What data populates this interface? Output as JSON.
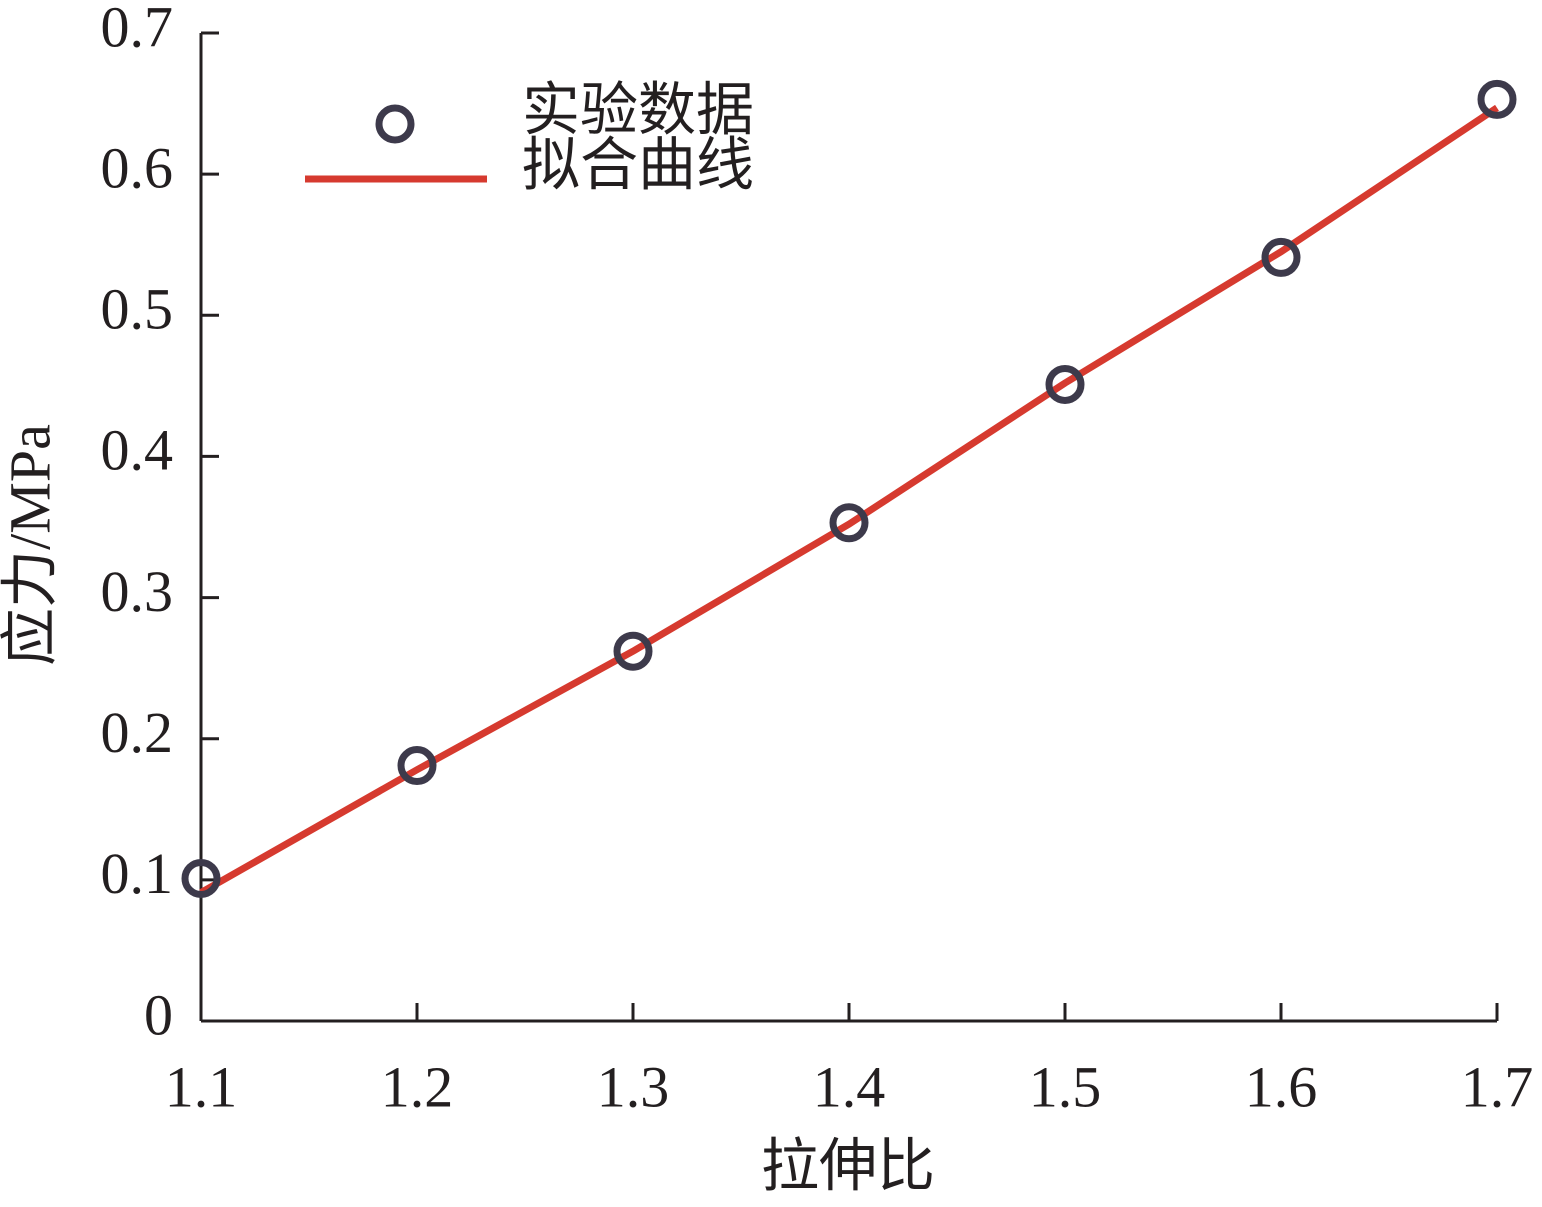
{
  "chart_data": {
    "type": "line",
    "xlabel": "拉伸比",
    "ylabel": "应力/MPa",
    "x": [
      1.1,
      1.2,
      1.3,
      1.4,
      1.5,
      1.6,
      1.7
    ],
    "series": [
      {
        "name": "实验数据",
        "type": "scatter",
        "color": "#3d3a4b",
        "values": [
          0.101,
          0.181,
          0.262,
          0.353,
          0.451,
          0.541,
          0.653
        ]
      },
      {
        "name": "拟合曲线",
        "type": "line",
        "color": "#d63a2f",
        "values": [
          0.091,
          0.178,
          0.262,
          0.352,
          0.452,
          0.545,
          0.647
        ]
      }
    ],
    "xlim": [
      1.1,
      1.7
    ],
    "xticks": [
      1.1,
      1.2,
      1.3,
      1.4,
      1.5,
      1.6,
      1.7
    ],
    "ylim": [
      0,
      0.7
    ],
    "yticks": [
      0,
      0.1,
      0.2,
      0.3,
      0.4,
      0.5,
      0.6,
      0.7
    ],
    "legend": "upper left",
    "grid": false
  }
}
